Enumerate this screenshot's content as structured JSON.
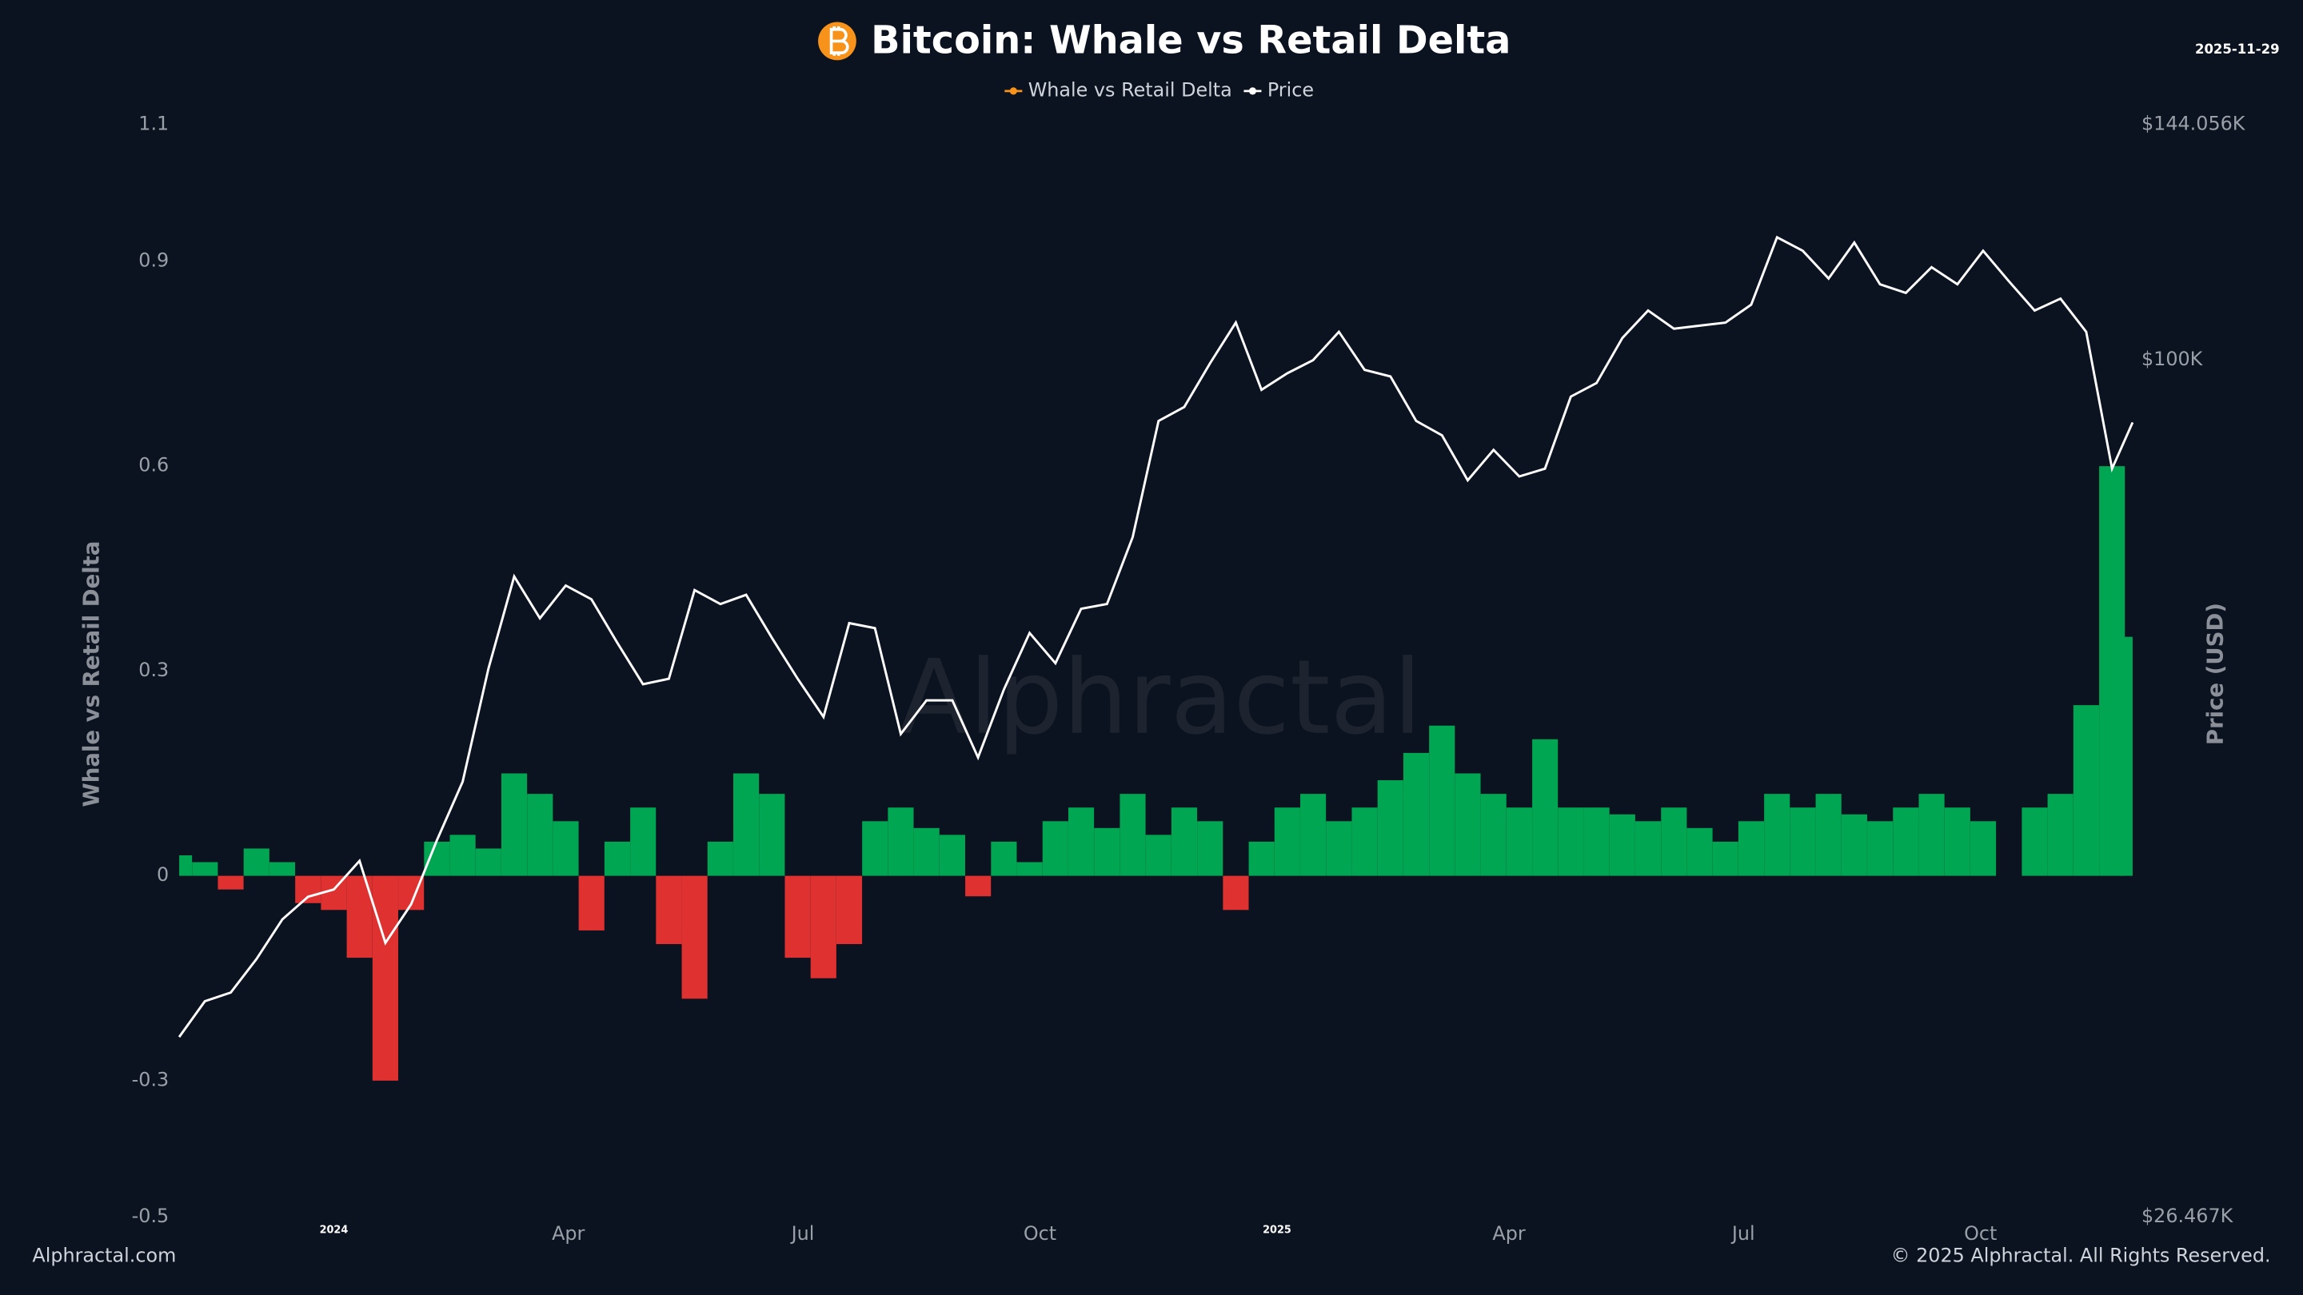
{
  "chart_data": {
    "type": "area-line",
    "title": "Bitcoin: Whale vs Retail Delta",
    "date": "2025-11-29",
    "watermark": "Alphractal",
    "source": "Alphractal.com",
    "copyright": "© 2025 Alphractal. All Rights Reserved.",
    "y_label": "Whale vs Retail Delta",
    "y2_label": "Price (USD)",
    "x": [
      "2023-11-02",
      "2023-11-12",
      "2023-11-22",
      "2023-12-02",
      "2023-12-12",
      "2023-12-22",
      "2024-01-01",
      "2024-01-11",
      "2024-01-21",
      "2024-01-31",
      "2024-02-10",
      "2024-02-20",
      "2024-03-01",
      "2024-03-11",
      "2024-03-21",
      "2024-03-31",
      "2024-04-10",
      "2024-04-20",
      "2024-04-30",
      "2024-05-10",
      "2024-05-20",
      "2024-05-30",
      "2024-06-09",
      "2024-06-19",
      "2024-06-29",
      "2024-07-09",
      "2024-07-19",
      "2024-07-29",
      "2024-08-08",
      "2024-08-18",
      "2024-08-28",
      "2024-09-07",
      "2024-09-17",
      "2024-09-27",
      "2024-10-07",
      "2024-10-17",
      "2024-10-27",
      "2024-11-06",
      "2024-11-16",
      "2024-11-26",
      "2024-12-06",
      "2024-12-16",
      "2024-12-26",
      "2025-01-05",
      "2025-01-15",
      "2025-01-25",
      "2025-02-04",
      "2025-02-14",
      "2025-02-24",
      "2025-03-06",
      "2025-03-16",
      "2025-03-26",
      "2025-04-05",
      "2025-04-15",
      "2025-04-25",
      "2025-05-05",
      "2025-05-15",
      "2025-05-25",
      "2025-06-04",
      "2025-06-14",
      "2025-06-24",
      "2025-07-04",
      "2025-07-14",
      "2025-07-24",
      "2025-08-03",
      "2025-08-13",
      "2025-08-23",
      "2025-09-02",
      "2025-09-12",
      "2025-09-22",
      "2025-10-02",
      "2025-10-12",
      "2025-10-22",
      "2025-11-01",
      "2025-11-11",
      "2025-11-21",
      "2025-11-29"
    ],
    "xlim": [
      "2023-11-02",
      "2025-11-29"
    ],
    "xticks": [
      {
        "value": "2024-01-01",
        "label": "2024"
      },
      {
        "value": "2024-04-01",
        "label": "Apr"
      },
      {
        "value": "2024-07-01",
        "label": "Jul"
      },
      {
        "value": "2024-10-01",
        "label": "Oct"
      },
      {
        "value": "2025-01-01",
        "label": "2025"
      },
      {
        "value": "2025-04-01",
        "label": "Apr"
      },
      {
        "value": "2025-07-01",
        "label": "Jul"
      },
      {
        "value": "2025-10-01",
        "label": "Oct"
      }
    ],
    "ylim": [
      -0.5,
      1.1
    ],
    "yticks": [
      1.1,
      0.9,
      0.6,
      0.3,
      0,
      -0.3,
      -0.5
    ],
    "y2lim": [
      26467,
      144056
    ],
    "y2_log": true,
    "y2ticks": [
      {
        "value": 144056,
        "label": "$144.056K"
      },
      {
        "value": 100000,
        "label": "$100K"
      },
      {
        "value": 26467,
        "label": "$26.467K"
      }
    ],
    "positive_color": "#00a651",
    "negative_color": "#e03131",
    "series": [
      {
        "name": "Whale vs Retail Delta",
        "color": "#f7931a",
        "values": [
          0.03,
          0.02,
          -0.02,
          0.04,
          0.02,
          -0.04,
          -0.05,
          -0.12,
          -0.3,
          -0.05,
          0.05,
          0.06,
          0.04,
          0.15,
          0.12,
          0.08,
          -0.08,
          0.05,
          0.1,
          -0.1,
          -0.18,
          0.05,
          0.15,
          0.12,
          -0.12,
          -0.15,
          -0.1,
          0.08,
          0.1,
          0.07,
          0.06,
          -0.03,
          0.05,
          0.02,
          0.08,
          0.1,
          0.07,
          0.12,
          0.06,
          0.1,
          0.08,
          -0.05,
          0.05,
          0.1,
          0.12,
          0.08,
          0.1,
          0.14,
          0.18,
          0.22,
          0.15,
          0.12,
          0.1,
          0.2,
          0.1,
          0.1,
          0.09,
          0.08,
          0.1,
          0.07,
          0.05,
          0.08,
          0.12,
          0.1,
          0.12,
          0.09,
          0.08,
          0.1,
          0.12,
          0.1,
          0.08,
          0.0,
          0.1,
          0.12,
          0.25,
          0.6,
          0.35
        ]
      },
      {
        "name": "Price",
        "color": "#ffffff",
        "axis": "y2",
        "values": [
          35000,
          37000,
          37500,
          39500,
          42000,
          43500,
          44000,
          46000,
          40500,
          43000,
          47500,
          52000,
          62000,
          71500,
          67000,
          70500,
          69000,
          64500,
          60500,
          61000,
          70000,
          68500,
          69500,
          65000,
          61000,
          57500,
          66500,
          66000,
          56000,
          59000,
          59000,
          54000,
          60000,
          65500,
          62500,
          68000,
          68500,
          76000,
          91000,
          93000,
          99500,
          106000,
          95500,
          98000,
          100000,
          104500,
          98500,
          97500,
          91000,
          89000,
          83000,
          87000,
          83500,
          84500,
          94500,
          96500,
          103500,
          108000,
          105000,
          105500,
          106000,
          109000,
          121000,
          118500,
          113500,
          120000,
          112500,
          111000,
          115500,
          112500,
          118500,
          113000,
          108000,
          110000,
          104500,
          84500,
          90800
        ]
      }
    ]
  }
}
